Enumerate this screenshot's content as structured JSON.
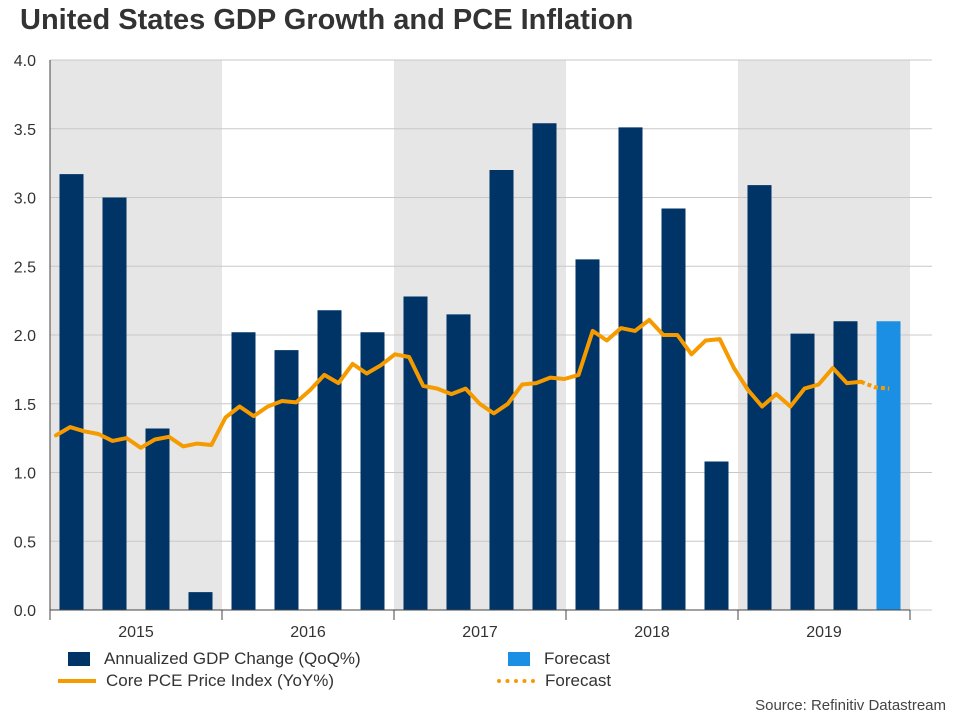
{
  "title": "United States GDP Growth and PCE Inflation",
  "source": "Source: Refinitiv Datastream",
  "colors": {
    "gdp_bar": "#003366",
    "forecast_bar": "#1a8fe3",
    "pce_line": "#f59b00",
    "shade": "#e6e6e6",
    "grid": "#c8c8c8"
  },
  "legend": {
    "gdp_label": "Annualized GDP Change (QoQ%)",
    "forecast_bar_label": "Forecast",
    "pce_label": "Core PCE Price Index (YoY%)",
    "forecast_line_label": "Forecast"
  },
  "chart_data": {
    "type": "bar",
    "title": "United States GDP Growth and PCE Inflation",
    "xlabel": "",
    "ylabel": "",
    "ylim": [
      0,
      4.0
    ],
    "yticks": [
      "0.0",
      "0.5",
      "1.0",
      "1.5",
      "2.0",
      "2.5",
      "3.0",
      "3.5",
      "4.0"
    ],
    "years": [
      "2015",
      "2016",
      "2017",
      "2018",
      "2019"
    ],
    "shaded_years": [
      "2015",
      "2017",
      "2019"
    ],
    "grid": true,
    "legend_position": "bottom",
    "categories": [
      "2015 Q1",
      "2015 Q2",
      "2015 Q3",
      "2015 Q4",
      "2016 Q1",
      "2016 Q2",
      "2016 Q3",
      "2016 Q4",
      "2017 Q1",
      "2017 Q2",
      "2017 Q3",
      "2017 Q4",
      "2018 Q1",
      "2018 Q2",
      "2018 Q3",
      "2018 Q4",
      "2019 Q1",
      "2019 Q2",
      "2019 Q3",
      "2019 Q4"
    ],
    "series": [
      {
        "name": "Annualized GDP Change (QoQ%)",
        "values": [
          3.17,
          3.0,
          1.32,
          0.13,
          2.02,
          1.89,
          2.18,
          2.02,
          2.28,
          2.15,
          3.2,
          3.54,
          2.55,
          3.51,
          2.92,
          1.08,
          3.09,
          2.01,
          2.1,
          null
        ]
      },
      {
        "name": "Forecast",
        "values": [
          null,
          null,
          null,
          null,
          null,
          null,
          null,
          null,
          null,
          null,
          null,
          null,
          null,
          null,
          null,
          null,
          null,
          null,
          null,
          2.1
        ]
      }
    ],
    "line_series": {
      "name": "Core PCE Price Index (YoY%)",
      "values": [
        1.27,
        1.33,
        1.3,
        1.28,
        1.23,
        1.25,
        1.18,
        1.24,
        1.26,
        1.19,
        1.21,
        1.2,
        1.4,
        1.48,
        1.41,
        1.48,
        1.52,
        1.51,
        1.6,
        1.71,
        1.65,
        1.79,
        1.72,
        1.78,
        1.86,
        1.84,
        1.63,
        1.61,
        1.57,
        1.61,
        1.5,
        1.43,
        1.5,
        1.64,
        1.65,
        1.69,
        1.68,
        1.71,
        2.03,
        1.96,
        2.05,
        2.03,
        2.11,
        2.0,
        2.0,
        1.86,
        1.96,
        1.97,
        1.76,
        1.6,
        1.48,
        1.57,
        1.48,
        1.61,
        1.64,
        1.76,
        1.65,
        1.66
      ]
    },
    "forecast_line": {
      "name": "Forecast",
      "values": [
        1.66,
        1.62,
        1.61
      ]
    }
  }
}
